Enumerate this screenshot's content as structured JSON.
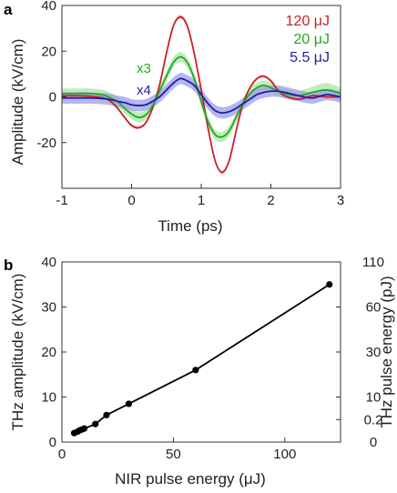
{
  "chart_data": [
    {
      "panel": "a",
      "type": "line",
      "xlabel": "Time (ps)",
      "ylabel": "Amplitude (kV/cm)",
      "xlim": [
        -1,
        3
      ],
      "ylim": [
        -40,
        40
      ],
      "xticks": [
        "-1",
        "0",
        "1",
        "2",
        "3"
      ],
      "yticks": [
        "-20",
        "0",
        "20",
        "40"
      ],
      "legend_position": "top-right",
      "series": [
        {
          "name": "120 μJ",
          "color": "#cc1f26",
          "band_color": "#f0a0a4",
          "x": [
            -1,
            -0.8,
            -0.6,
            -0.4,
            -0.3,
            -0.2,
            -0.1,
            0,
            0.1,
            0.2,
            0.3,
            0.4,
            0.5,
            0.6,
            0.7,
            0.8,
            0.9,
            1.0,
            1.1,
            1.2,
            1.3,
            1.4,
            1.5,
            1.6,
            1.7,
            1.8,
            1.9,
            2.0,
            2.1,
            2.2,
            2.4,
            2.6,
            2.8,
            3.0
          ],
          "y": [
            0.5,
            0.5,
            0.3,
            -0.5,
            -2,
            -5,
            -9,
            -12.5,
            -13.5,
            -11.5,
            -5,
            5,
            19,
            31,
            35,
            31,
            19,
            3,
            -14,
            -28,
            -33,
            -28,
            -15,
            -3,
            4,
            8,
            9,
            7,
            3,
            0.5,
            -1,
            0.5,
            0,
            0
          ],
          "band": [
            0.6,
            0.6,
            0.6,
            0.6,
            0.6,
            0.6,
            0.6,
            0.6,
            0.6,
            0.6,
            0.6,
            0.6,
            0.6,
            0.6,
            0.8,
            0.8,
            0.6,
            0.6,
            0.6,
            0.6,
            0.8,
            0.8,
            0.6,
            0.6,
            0.6,
            0.6,
            0.6,
            0.6,
            0.6,
            0.6,
            0.6,
            0.6,
            0.6,
            0.6
          ]
        },
        {
          "name": "20 μJ",
          "color": "#1faa1f",
          "band_color": "#a8e6a3",
          "scale_label": "x3",
          "x": [
            -1,
            -0.8,
            -0.6,
            -0.4,
            -0.3,
            -0.2,
            -0.1,
            0,
            0.1,
            0.2,
            0.3,
            0.4,
            0.5,
            0.6,
            0.7,
            0.8,
            0.9,
            1.0,
            1.1,
            1.2,
            1.3,
            1.4,
            1.5,
            1.6,
            1.7,
            1.8,
            1.9,
            2.0,
            2.1,
            2.2,
            2.4,
            2.6,
            2.8,
            3.0
          ],
          "y": [
            1.5,
            1.5,
            1.5,
            0.8,
            -0.5,
            -2,
            -5,
            -7.5,
            -9,
            -8,
            -4,
            2.5,
            9,
            15,
            17.5,
            15,
            8,
            -2,
            -11,
            -16.5,
            -17.5,
            -15,
            -9,
            -3,
            1.5,
            4,
            5,
            4,
            2.5,
            1.5,
            0.5,
            2,
            3,
            1.5
          ],
          "band": [
            2.2,
            2.2,
            2.2,
            2.2,
            2.2,
            2.2,
            2.2,
            2.2,
            2.2,
            2.2,
            2.2,
            2.2,
            2.2,
            2.2,
            2.2,
            2.2,
            2.2,
            2.2,
            2.2,
            2.2,
            2.2,
            2.2,
            2.2,
            2.2,
            2.2,
            2.2,
            2.2,
            2.2,
            2.2,
            2.2,
            2.2,
            2.5,
            3,
            2.5
          ]
        },
        {
          "name": "5.5 μJ",
          "color": "#1f1fa8",
          "band_color": "#9e9ee8",
          "scale_label": "x4",
          "x": [
            -1,
            -0.8,
            -0.6,
            -0.4,
            -0.3,
            -0.2,
            -0.1,
            0,
            0.1,
            0.2,
            0.3,
            0.4,
            0.5,
            0.6,
            0.7,
            0.8,
            0.9,
            1.0,
            1.1,
            1.2,
            1.3,
            1.4,
            1.5,
            1.6,
            1.7,
            1.8,
            1.9,
            2.0,
            2.1,
            2.2,
            2.4,
            2.6,
            2.8,
            3.0
          ],
          "y": [
            -0.5,
            -0.5,
            -0.5,
            -0.8,
            -1.2,
            -2,
            -2.5,
            -3.5,
            -3.8,
            -3.5,
            -2,
            0,
            3,
            6,
            8,
            7,
            5,
            1,
            -3,
            -6,
            -7,
            -6.5,
            -5,
            -3,
            -1,
            1,
            2,
            2.5,
            2.5,
            2,
            0.5,
            -0.5,
            1,
            0
          ],
          "band": [
            2.5,
            2.5,
            2.5,
            2.5,
            2.5,
            2.5,
            2.5,
            2.5,
            2.5,
            2.5,
            2.5,
            2.5,
            2.5,
            2.5,
            2.5,
            2.5,
            2.5,
            2.5,
            2.5,
            2.5,
            2.5,
            2.5,
            2.5,
            2.5,
            2.5,
            2.5,
            2.5,
            2.5,
            2.5,
            2.5,
            2.5,
            2.5,
            2.5,
            2.5
          ]
        }
      ]
    },
    {
      "panel": "b",
      "type": "line",
      "xlabel": "NIR pulse energy (μJ)",
      "ylabel": "THz amplitude (kV/cm)",
      "y2label": "THz pulse energy (pJ)",
      "xlim": [
        0,
        125
      ],
      "ylim": [
        0,
        40
      ],
      "xticks": [
        "0",
        "50",
        "100"
      ],
      "yticks": [
        "0",
        "10",
        "20",
        "30",
        "40"
      ],
      "y2ticks": [
        "0",
        "0.2",
        "10",
        "30",
        "60",
        "110"
      ],
      "y2tick_at_amplitude": [
        0,
        5,
        10,
        20,
        30,
        40
      ],
      "series": [
        {
          "name": "",
          "color": "#000000",
          "marker": "circle",
          "x": [
            5.5,
            7,
            8,
            9,
            10,
            15,
            20,
            30,
            60,
            120
          ],
          "y": [
            2,
            2.3,
            2.6,
            2.8,
            3,
            4,
            6,
            8.5,
            16,
            35
          ]
        }
      ]
    }
  ]
}
